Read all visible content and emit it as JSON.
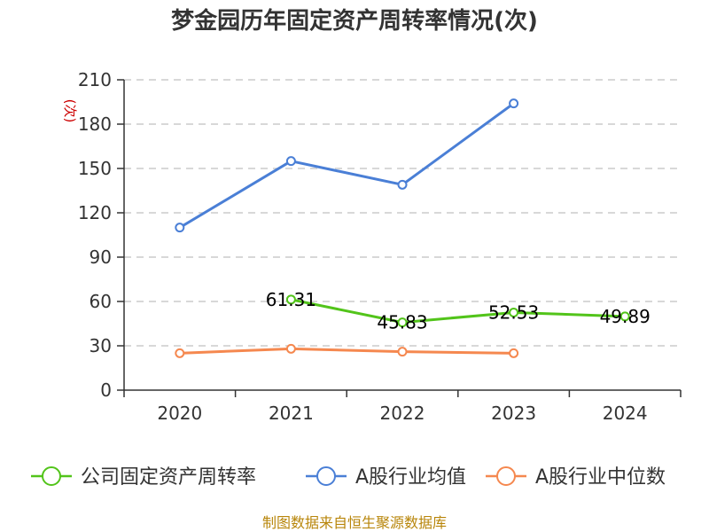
{
  "chart_data": {
    "type": "line",
    "title": "梦金园历年固定资产周转率情况(次)",
    "ylabel": "(次)",
    "xlabel": "",
    "categories": [
      "2020",
      "2021",
      "2022",
      "2023",
      "2024"
    ],
    "ylim": [
      0,
      210
    ],
    "yticks": [
      0,
      30,
      60,
      90,
      120,
      150,
      180,
      210
    ],
    "grid": true,
    "legend_position": "bottom",
    "series": [
      {
        "name": "公司固定资产周转率",
        "color": "#52c41a",
        "values": [
          null,
          61.31,
          45.83,
          52.53,
          49.89
        ],
        "labels": [
          null,
          "61.31",
          "45.83",
          "52.53",
          "49.89"
        ]
      },
      {
        "name": "A股行业均值",
        "color": "#4a7fd6",
        "values": [
          110,
          155,
          139,
          194,
          null
        ]
      },
      {
        "name": "A股行业中位数",
        "color": "#f5884f",
        "values": [
          25,
          28,
          26,
          25,
          null
        ]
      }
    ],
    "source": "制图数据来自恒生聚源数据库"
  }
}
